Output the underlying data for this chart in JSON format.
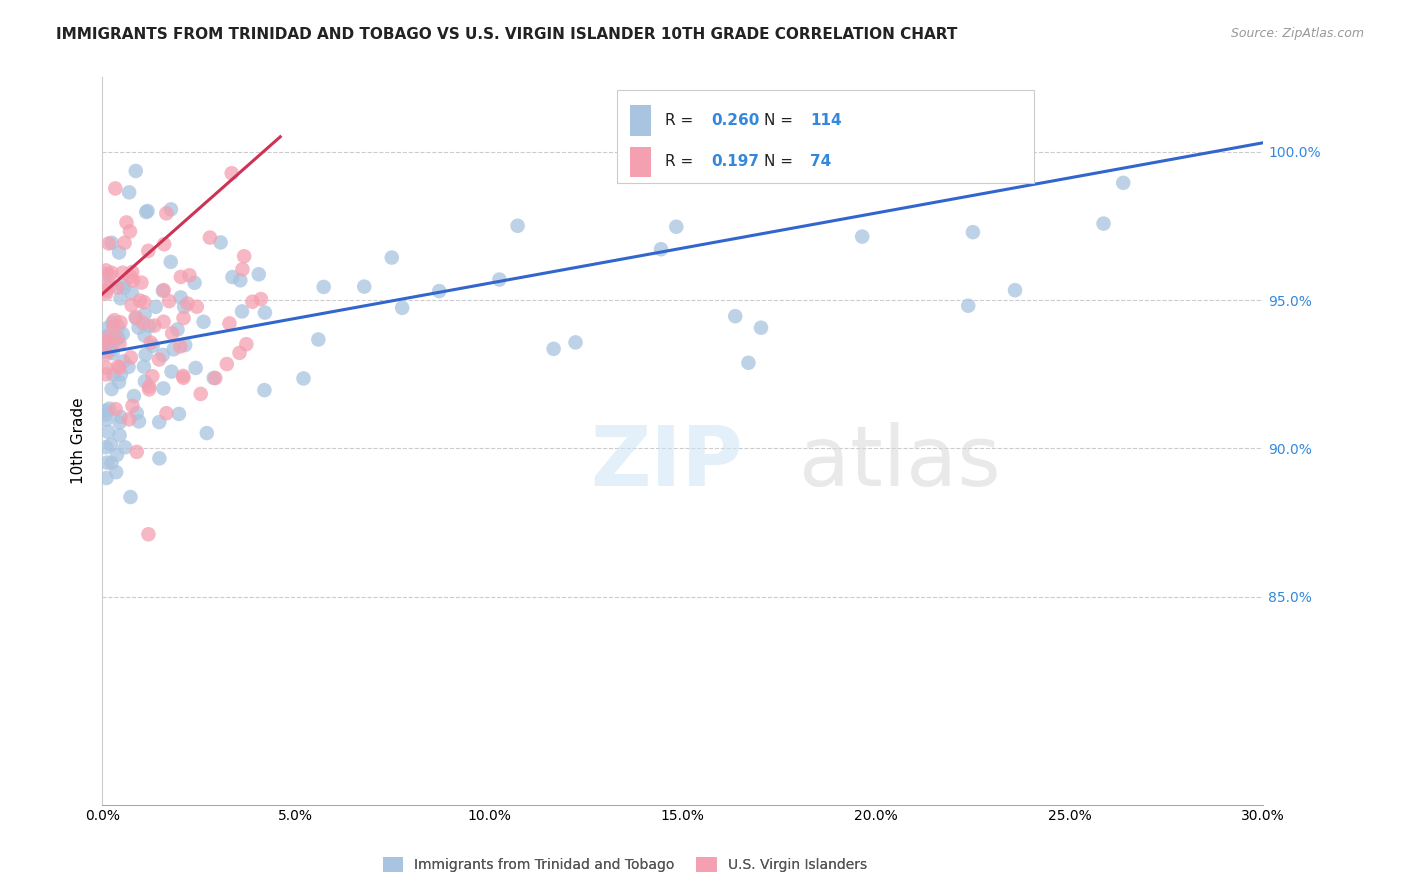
{
  "title": "IMMIGRANTS FROM TRINIDAD AND TOBAGO VS U.S. VIRGIN ISLANDER 10TH GRADE CORRELATION CHART",
  "source": "Source: ZipAtlas.com",
  "ylabel": "10th Grade",
  "yaxis_ticks": [
    "100.0%",
    "95.0%",
    "90.0%",
    "85.0%"
  ],
  "yaxis_values": [
    1.0,
    0.95,
    0.9,
    0.85
  ],
  "blue_R": "0.260",
  "blue_N": "114",
  "pink_R": "0.197",
  "pink_N": "74",
  "legend_label_blue": "Immigrants from Trinidad and Tobago",
  "legend_label_pink": "U.S. Virgin Islanders",
  "blue_color": "#a8c4e0",
  "pink_color": "#f4a0b0",
  "blue_line_color": "#3366cc",
  "pink_line_color": "#cc3355",
  "title_color": "#222222",
  "source_color": "#999999",
  "right_axis_color": "#3388dd",
  "xlim": [
    0.0,
    0.3
  ],
  "ylim": [
    0.78,
    1.025
  ],
  "blue_trend_x": [
    0.0,
    0.3
  ],
  "blue_trend_y": [
    0.932,
    1.003
  ],
  "pink_trend_x": [
    0.0,
    0.046
  ],
  "pink_trend_y": [
    0.952,
    1.005
  ]
}
